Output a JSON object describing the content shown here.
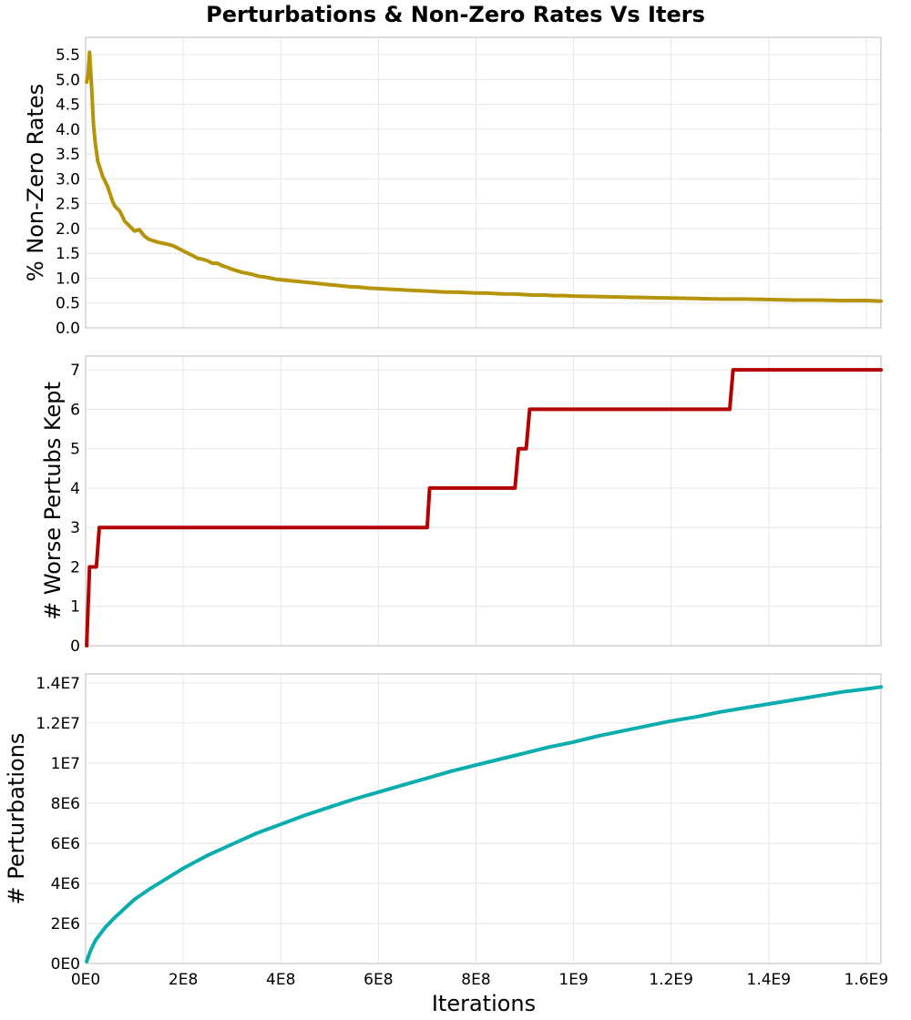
{
  "figure": {
    "title": "Perturbations & Non-Zero Rates Vs Iters",
    "shared_xlabel": "Iterations"
  },
  "chart_data": [
    {
      "type": "line",
      "ylabel": "% Non-Zero Rates",
      "xlim": [
        0,
        1630000000
      ],
      "ylim": [
        0,
        5.85
      ],
      "yticks": [
        0,
        0.5,
        1,
        1.5,
        2,
        2.5,
        3,
        3.5,
        4,
        4.5,
        5,
        5.5
      ],
      "ytick_labels": [
        "0.0",
        "0.5",
        "1.0",
        "1.5",
        "2.0",
        "2.5",
        "3.0",
        "3.5",
        "4.0",
        "4.5",
        "5.0",
        "5.5"
      ],
      "grid": true,
      "color": "#b5940a",
      "series": [
        {
          "x": [
            2000000,
            5000000,
            8000000,
            12000000,
            16000000,
            20000000,
            25000000,
            30000000,
            35000000,
            40000000,
            45000000,
            50000000,
            55000000,
            60000000,
            65000000,
            70000000,
            75000000,
            80000000,
            90000000,
            100000000,
            110000000,
            120000000,
            130000000,
            140000000,
            150000000,
            160000000,
            170000000,
            180000000,
            190000000,
            200000000,
            210000000,
            220000000,
            230000000,
            240000000,
            250000000,
            260000000,
            270000000,
            280000000,
            290000000,
            300000000,
            310000000,
            320000000,
            330000000,
            340000000,
            350000000,
            360000000,
            370000000,
            380000000,
            390000000,
            400000000,
            420000000,
            440000000,
            460000000,
            480000000,
            500000000,
            520000000,
            540000000,
            560000000,
            580000000,
            600000000,
            620000000,
            640000000,
            660000000,
            680000000,
            700000000,
            720000000,
            740000000,
            760000000,
            780000000,
            800000000,
            820000000,
            840000000,
            860000000,
            880000000,
            900000000,
            920000000,
            940000000,
            960000000,
            980000000,
            1000000000,
            1050000000,
            1100000000,
            1150000000,
            1200000000,
            1250000000,
            1300000000,
            1350000000,
            1400000000,
            1450000000,
            1500000000,
            1550000000,
            1600000000,
            1630000000
          ],
          "y": [
            4.95,
            5.1,
            5.55,
            4.9,
            4.1,
            3.7,
            3.35,
            3.2,
            3.05,
            2.95,
            2.85,
            2.7,
            2.55,
            2.45,
            2.4,
            2.35,
            2.25,
            2.15,
            2.05,
            1.95,
            1.98,
            1.85,
            1.78,
            1.75,
            1.72,
            1.7,
            1.68,
            1.65,
            1.6,
            1.55,
            1.5,
            1.45,
            1.4,
            1.38,
            1.35,
            1.3,
            1.3,
            1.25,
            1.22,
            1.18,
            1.15,
            1.12,
            1.1,
            1.08,
            1.05,
            1.03,
            1.02,
            1.0,
            0.98,
            0.97,
            0.95,
            0.93,
            0.91,
            0.89,
            0.87,
            0.85,
            0.83,
            0.82,
            0.8,
            0.79,
            0.78,
            0.77,
            0.76,
            0.75,
            0.74,
            0.73,
            0.72,
            0.72,
            0.71,
            0.7,
            0.7,
            0.69,
            0.68,
            0.68,
            0.67,
            0.66,
            0.66,
            0.65,
            0.65,
            0.64,
            0.63,
            0.62,
            0.61,
            0.6,
            0.59,
            0.58,
            0.58,
            0.57,
            0.56,
            0.56,
            0.55,
            0.55,
            0.54
          ]
        }
      ]
    },
    {
      "type": "line",
      "ylabel": "# Worse Pertubs Kept",
      "xlim": [
        0,
        1630000000
      ],
      "ylim": [
        0,
        7.35
      ],
      "yticks": [
        0,
        1,
        2,
        3,
        4,
        5,
        6,
        7
      ],
      "ytick_labels": [
        "0",
        "1",
        "2",
        "3",
        "4",
        "5",
        "6",
        "7"
      ],
      "grid": true,
      "color": "#b30000",
      "series": [
        {
          "x": [
            2000000,
            8000000,
            22000000,
            28000000,
            700000000,
            705000000,
            880000000,
            887000000,
            903000000,
            910000000,
            1320000000,
            1327000000,
            1630000000
          ],
          "y": [
            0,
            2,
            2,
            3,
            3,
            4,
            4,
            5,
            5,
            6,
            6,
            7,
            7
          ]
        }
      ]
    },
    {
      "type": "line",
      "ylabel": "# Perturbations",
      "xlabel": "Iterations",
      "xlim": [
        0,
        1630000000
      ],
      "ylim": [
        0,
        14450000
      ],
      "xticks": [
        0,
        200000000,
        400000000,
        600000000,
        800000000,
        1000000000,
        1200000000,
        1400000000,
        1600000000
      ],
      "xtick_labels": [
        "0E0",
        "2E8",
        "4E8",
        "6E8",
        "8E8",
        "1E9",
        "1.2E9",
        "1.4E9",
        "1.6E9"
      ],
      "yticks": [
        0,
        2000000,
        4000000,
        6000000,
        8000000,
        10000000,
        12000000,
        14000000
      ],
      "ytick_labels": [
        "0E0",
        "2E6",
        "4E6",
        "6E6",
        "8E6",
        "1E7",
        "1.2E7",
        "1.4E7"
      ],
      "grid": true,
      "color": "#0aadad",
      "series": [
        {
          "x": [
            2000000,
            10000000,
            20000000,
            40000000,
            60000000,
            80000000,
            100000000,
            130000000,
            160000000,
            200000000,
            250000000,
            300000000,
            350000000,
            400000000,
            450000000,
            500000000,
            550000000,
            600000000,
            650000000,
            700000000,
            750000000,
            800000000,
            850000000,
            900000000,
            950000000,
            1000000000,
            1050000000,
            1100000000,
            1150000000,
            1200000000,
            1250000000,
            1300000000,
            1350000000,
            1400000000,
            1450000000,
            1500000000,
            1550000000,
            1600000000,
            1630000000
          ],
          "y": [
            100000,
            650000,
            1150000,
            1800000,
            2300000,
            2750000,
            3200000,
            3700000,
            4150000,
            4750000,
            5400000,
            5950000,
            6500000,
            6950000,
            7400000,
            7800000,
            8200000,
            8550000,
            8900000,
            9250000,
            9600000,
            9900000,
            10200000,
            10500000,
            10800000,
            11050000,
            11350000,
            11600000,
            11850000,
            12100000,
            12300000,
            12550000,
            12750000,
            12950000,
            13150000,
            13350000,
            13550000,
            13700000,
            13800000
          ]
        }
      ]
    }
  ]
}
